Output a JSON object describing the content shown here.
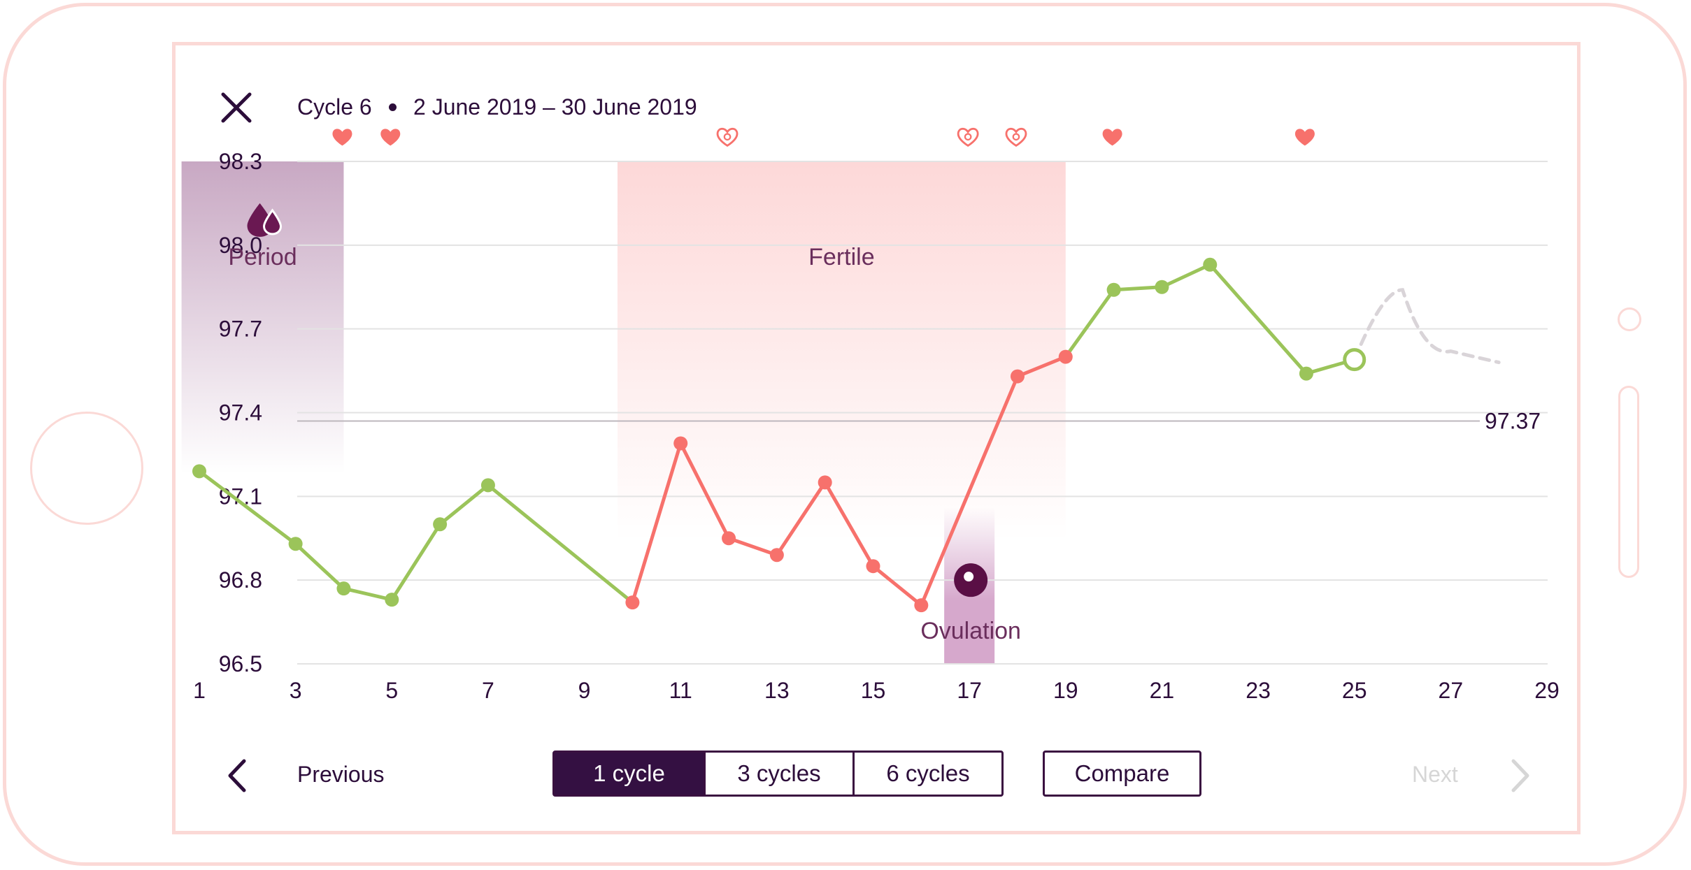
{
  "header": {
    "cycle_label": "Cycle 6",
    "date_range": "2 June 2019 – 30 June 2019"
  },
  "footer": {
    "previous_label": "Previous",
    "next_label": "Next",
    "range_options": [
      "1 cycle",
      "3 cycles",
      "6 cycles"
    ],
    "selected_range": "1 cycle",
    "compare_label": "Compare"
  },
  "colors": {
    "low_phase": "#9bc45a",
    "fertile_phase": "#f7716c",
    "heart": "#f7716c",
    "period_band": "#c9a9c4",
    "fertile_band": "#fdd9d9",
    "ovulation_band": "#d6a8cc",
    "text_dark": "#2c0d3a",
    "region_text": "#6a2e5c",
    "predicted": "#d9d4d8",
    "next_disabled": "#d6d6d6"
  },
  "chart_data": {
    "type": "line",
    "xlim": [
      1,
      29
    ],
    "ylim": [
      96.5,
      98.3
    ],
    "x_ticks": [
      1,
      3,
      5,
      7,
      9,
      11,
      13,
      15,
      17,
      19,
      21,
      23,
      25,
      27,
      29
    ],
    "y_ticks": [
      "98.3",
      "98.0",
      "97.7",
      "97.4",
      "97.1",
      "96.8",
      "96.5"
    ],
    "coverline": {
      "value": 97.37,
      "label": "97.37"
    },
    "regions": [
      {
        "label": "Period",
        "start_day": 1,
        "end_day": 4,
        "icon": "blood-drops-icon"
      },
      {
        "label": "Fertile",
        "start_day": 10,
        "end_day": 19
      },
      {
        "label": "Ovulation",
        "day": 17,
        "icon": "egg-icon"
      }
    ],
    "intercourse_markers": [
      {
        "day": 4,
        "type": "heart"
      },
      {
        "day": 5,
        "type": "heart"
      },
      {
        "day": 12,
        "type": "protected-heart"
      },
      {
        "day": 17,
        "type": "protected-heart"
      },
      {
        "day": 18,
        "type": "protected-heart"
      },
      {
        "day": 20,
        "type": "heart"
      },
      {
        "day": 24,
        "type": "heart"
      }
    ],
    "series": [
      {
        "phase": "low",
        "points": [
          [
            1,
            97.19
          ],
          [
            3,
            96.93
          ],
          [
            4,
            96.77
          ],
          [
            5,
            96.73
          ],
          [
            6,
            97.0
          ],
          [
            7,
            97.14
          ],
          [
            10,
            96.72
          ]
        ]
      },
      {
        "phase": "fertile",
        "points": [
          [
            10,
            96.72
          ],
          [
            11,
            97.29
          ],
          [
            12,
            96.95
          ],
          [
            13,
            96.89
          ],
          [
            14,
            97.15
          ],
          [
            15,
            96.85
          ],
          [
            16,
            96.71
          ],
          [
            18,
            97.53
          ],
          [
            19,
            97.6
          ]
        ]
      },
      {
        "phase": "high",
        "points": [
          [
            19,
            97.6
          ],
          [
            20,
            97.84
          ],
          [
            21,
            97.85
          ],
          [
            22,
            97.93
          ],
          [
            24,
            97.54
          ],
          [
            25,
            97.59
          ]
        ]
      }
    ],
    "today_point": [
      25,
      97.59
    ],
    "predicted": [
      [
        25,
        97.59
      ],
      [
        26,
        97.84
      ],
      [
        27,
        97.62
      ],
      [
        28,
        97.58
      ]
    ]
  }
}
